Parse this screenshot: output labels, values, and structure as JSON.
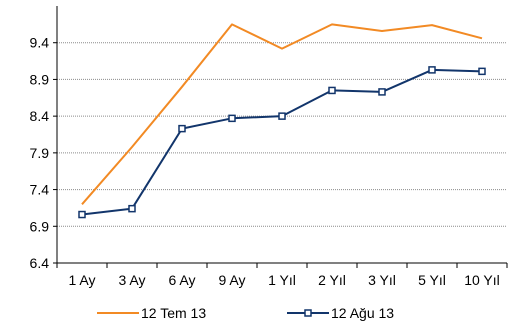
{
  "chart_data": {
    "type": "line",
    "categories": [
      "1 Ay",
      "3 Ay",
      "6 Ay",
      "9 Ay",
      "1 Yıl",
      "2 Yıl",
      "3 Yıl",
      "5 Yıl",
      "10 Yıl"
    ],
    "y_ticks": [
      "6.4",
      "6.9",
      "7.4",
      "7.9",
      "8.4",
      "8.9",
      "9.4"
    ],
    "ylim": [
      6.4,
      9.9
    ],
    "grid": true,
    "legend_position": "bottom",
    "series": [
      {
        "name": "12 Tem 13",
        "color": "#f28a24",
        "marker": "none",
        "values": [
          7.2,
          7.98,
          8.8,
          9.65,
          9.32,
          9.65,
          9.56,
          9.64,
          9.46
        ]
      },
      {
        "name": "12 Ağu 13",
        "color": "#12356b",
        "marker": "square",
        "values": [
          7.06,
          7.14,
          8.23,
          8.37,
          8.4,
          8.75,
          8.73,
          9.03,
          9.01
        ]
      }
    ]
  }
}
